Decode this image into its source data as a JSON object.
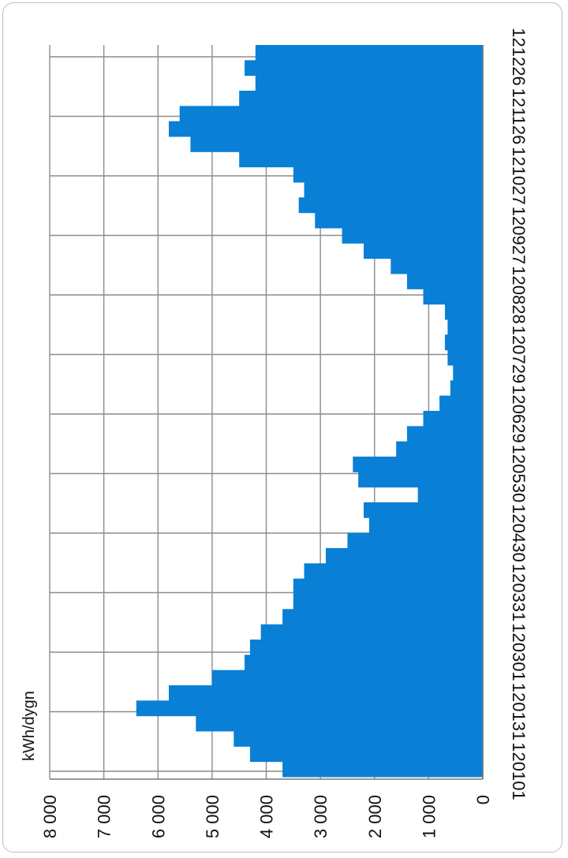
{
  "chart_data": {
    "type": "bar",
    "orientation": "rotated-90",
    "ylabel": "kWh/dygn",
    "ylim": [
      0,
      8000
    ],
    "yticks": [
      "0",
      "1 000",
      "2 000",
      "3 000",
      "4 000",
      "5 000",
      "6 000",
      "7 000",
      "8 000"
    ],
    "ytick_values": [
      0,
      1000,
      2000,
      3000,
      4000,
      5000,
      6000,
      7000,
      8000
    ],
    "xticks": [
      "120101",
      "120131",
      "120301",
      "120331",
      "120430",
      "120530",
      "120629",
      "120729",
      "120828",
      "120927",
      "121027",
      "121126",
      "121226"
    ],
    "grid": true,
    "color": "#0a7fd6",
    "series_weekly_kwh": [
      3700,
      4300,
      4600,
      5300,
      6400,
      5800,
      5000,
      4400,
      4300,
      4100,
      3700,
      3500,
      3500,
      3300,
      2900,
      2500,
      2100,
      2200,
      1200,
      2300,
      2400,
      1600,
      1400,
      1100,
      800,
      600,
      550,
      650,
      700,
      650,
      700,
      1100,
      1400,
      1700,
      2200,
      2600,
      3100,
      3400,
      3300,
      3500,
      4500,
      5400,
      5800,
      5600,
      4500,
      4200,
      4400,
      4200
    ]
  }
}
